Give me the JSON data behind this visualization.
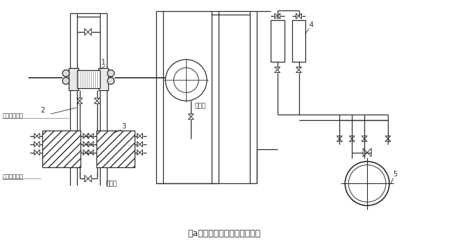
{
  "title": "（a）差压计装在节流装置下方",
  "bg_color": "#ffffff",
  "line_color": "#2a2a2a",
  "label_1": "1",
  "label_2": "2",
  "label_3": "3",
  "label_4": "4",
  "label_5": "5",
  "text_geliyelizhongji": "隔离液终结面",
  "text_geliyeliqishi": "隔离液起始面",
  "text_geliye": "隔离液",
  "text_beiceeye": "被测液"
}
